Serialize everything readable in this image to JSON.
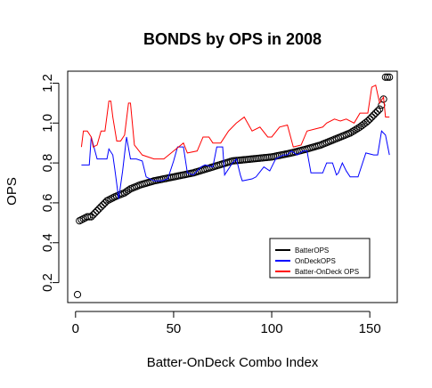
{
  "chart_data": {
    "type": "line",
    "title": "BONDS by OPS in 2008",
    "xlabel": "Batter-OnDeck Combo Index",
    "ylabel": "OPS",
    "xlim": [
      -4,
      164
    ],
    "ylim": [
      0.1,
      1.26
    ],
    "xticks": [
      0,
      50,
      100,
      150
    ],
    "yticks": [
      0.2,
      0.4,
      0.6,
      0.8,
      1.0,
      1.2
    ],
    "ytick_labels": [
      "0.2",
      "0.4",
      "0.6",
      "0.8",
      "1.0",
      "1.2"
    ],
    "grid": false,
    "legend_position": "bottom-right",
    "n_points": 160,
    "series": [
      {
        "name": "BatterOPS",
        "render": "points",
        "color": "#000000",
        "points": [
          [
            1,
            0.14
          ],
          [
            2,
            0.51
          ],
          [
            4,
            0.52
          ],
          [
            6,
            0.53
          ],
          [
            8,
            0.53
          ],
          [
            10,
            0.55
          ],
          [
            13,
            0.58
          ],
          [
            16,
            0.61
          ],
          [
            20,
            0.63
          ],
          [
            25,
            0.65
          ],
          [
            28,
            0.67
          ],
          [
            33,
            0.69
          ],
          [
            40,
            0.71
          ],
          [
            50,
            0.73
          ],
          [
            60,
            0.75
          ],
          [
            70,
            0.78
          ],
          [
            80,
            0.81
          ],
          [
            90,
            0.82
          ],
          [
            100,
            0.83
          ],
          [
            110,
            0.85
          ],
          [
            118,
            0.87
          ],
          [
            125,
            0.89
          ],
          [
            130,
            0.91
          ],
          [
            135,
            0.93
          ],
          [
            140,
            0.95
          ],
          [
            145,
            0.98
          ],
          [
            149,
            1.01
          ],
          [
            151,
            1.03
          ],
          [
            153,
            1.05
          ],
          [
            155,
            1.07
          ],
          [
            156,
            1.09
          ],
          [
            157,
            1.12
          ],
          [
            158,
            1.23
          ],
          [
            159,
            1.23
          ]
        ]
      },
      {
        "name": "OnDeckOPS",
        "render": "line",
        "color": "#0000ff",
        "points": [
          [
            3,
            0.79
          ],
          [
            7,
            0.79
          ],
          [
            8,
            0.93
          ],
          [
            11,
            0.82
          ],
          [
            16,
            0.82
          ],
          [
            17,
            0.87
          ],
          [
            19,
            0.84
          ],
          [
            20,
            0.77
          ],
          [
            22,
            0.62
          ],
          [
            24,
            0.76
          ],
          [
            26,
            0.93
          ],
          [
            28,
            0.82
          ],
          [
            31,
            0.82
          ],
          [
            34,
            0.81
          ],
          [
            36,
            0.73
          ],
          [
            40,
            0.71
          ],
          [
            44,
            0.71
          ],
          [
            47,
            0.72
          ],
          [
            50,
            0.81
          ],
          [
            52,
            0.88
          ],
          [
            55,
            0.88
          ],
          [
            57,
            0.75
          ],
          [
            60,
            0.74
          ],
          [
            64,
            0.78
          ],
          [
            66,
            0.79
          ],
          [
            70,
            0.78
          ],
          [
            72,
            0.88
          ],
          [
            75,
            0.88
          ],
          [
            76,
            0.74
          ],
          [
            80,
            0.8
          ],
          [
            82,
            0.82
          ],
          [
            84,
            0.74
          ],
          [
            85,
            0.71
          ],
          [
            90,
            0.72
          ],
          [
            92,
            0.73
          ],
          [
            96,
            0.78
          ],
          [
            99,
            0.76
          ],
          [
            102,
            0.82
          ],
          [
            106,
            0.84
          ],
          [
            108,
            0.84
          ],
          [
            110,
            0.86
          ],
          [
            113,
            0.84
          ],
          [
            116,
            0.86
          ],
          [
            118,
            0.86
          ],
          [
            120,
            0.75
          ],
          [
            124,
            0.75
          ],
          [
            126,
            0.75
          ],
          [
            128,
            0.8
          ],
          [
            131,
            0.8
          ],
          [
            133,
            0.74
          ],
          [
            134,
            0.75
          ],
          [
            136,
            0.8
          ],
          [
            138,
            0.76
          ],
          [
            140,
            0.73
          ],
          [
            144,
            0.73
          ],
          [
            148,
            0.85
          ],
          [
            152,
            0.84
          ],
          [
            154,
            0.84
          ],
          [
            156,
            0.96
          ],
          [
            158,
            0.94
          ],
          [
            160,
            0.84
          ]
        ]
      },
      {
        "name": "Batter-OnDeck OPS",
        "render": "line",
        "color": "#ff0000",
        "points": [
          [
            3,
            0.88
          ],
          [
            4,
            0.96
          ],
          [
            6,
            0.96
          ],
          [
            8,
            0.93
          ],
          [
            9,
            0.88
          ],
          [
            11,
            0.89
          ],
          [
            13,
            0.96
          ],
          [
            15,
            0.96
          ],
          [
            17,
            1.11
          ],
          [
            18,
            1.11
          ],
          [
            19,
            1.03
          ],
          [
            21,
            0.91
          ],
          [
            23,
            0.91
          ],
          [
            25,
            0.94
          ],
          [
            27,
            1.1
          ],
          [
            28,
            1.1
          ],
          [
            30,
            0.89
          ],
          [
            34,
            0.84
          ],
          [
            40,
            0.82
          ],
          [
            45,
            0.82
          ],
          [
            50,
            0.86
          ],
          [
            55,
            0.9
          ],
          [
            57,
            0.85
          ],
          [
            62,
            0.86
          ],
          [
            65,
            0.93
          ],
          [
            68,
            0.93
          ],
          [
            70,
            0.9
          ],
          [
            74,
            0.9
          ],
          [
            78,
            0.96
          ],
          [
            82,
            1.0
          ],
          [
            86,
            1.03
          ],
          [
            90,
            0.96
          ],
          [
            94,
            0.98
          ],
          [
            98,
            0.93
          ],
          [
            100,
            0.93
          ],
          [
            104,
            0.98
          ],
          [
            108,
            0.99
          ],
          [
            111,
            0.88
          ],
          [
            115,
            0.89
          ],
          [
            118,
            0.96
          ],
          [
            122,
            0.97
          ],
          [
            126,
            0.98
          ],
          [
            128,
            1.0
          ],
          [
            132,
            1.02
          ],
          [
            135,
            1.01
          ],
          [
            138,
            1.02
          ],
          [
            142,
            1.0
          ],
          [
            145,
            1.05
          ],
          [
            149,
            1.05
          ],
          [
            151,
            1.18
          ],
          [
            153,
            1.19
          ],
          [
            155,
            1.1
          ],
          [
            157,
            1.13
          ],
          [
            158,
            1.03
          ],
          [
            160,
            1.03
          ]
        ]
      }
    ]
  }
}
